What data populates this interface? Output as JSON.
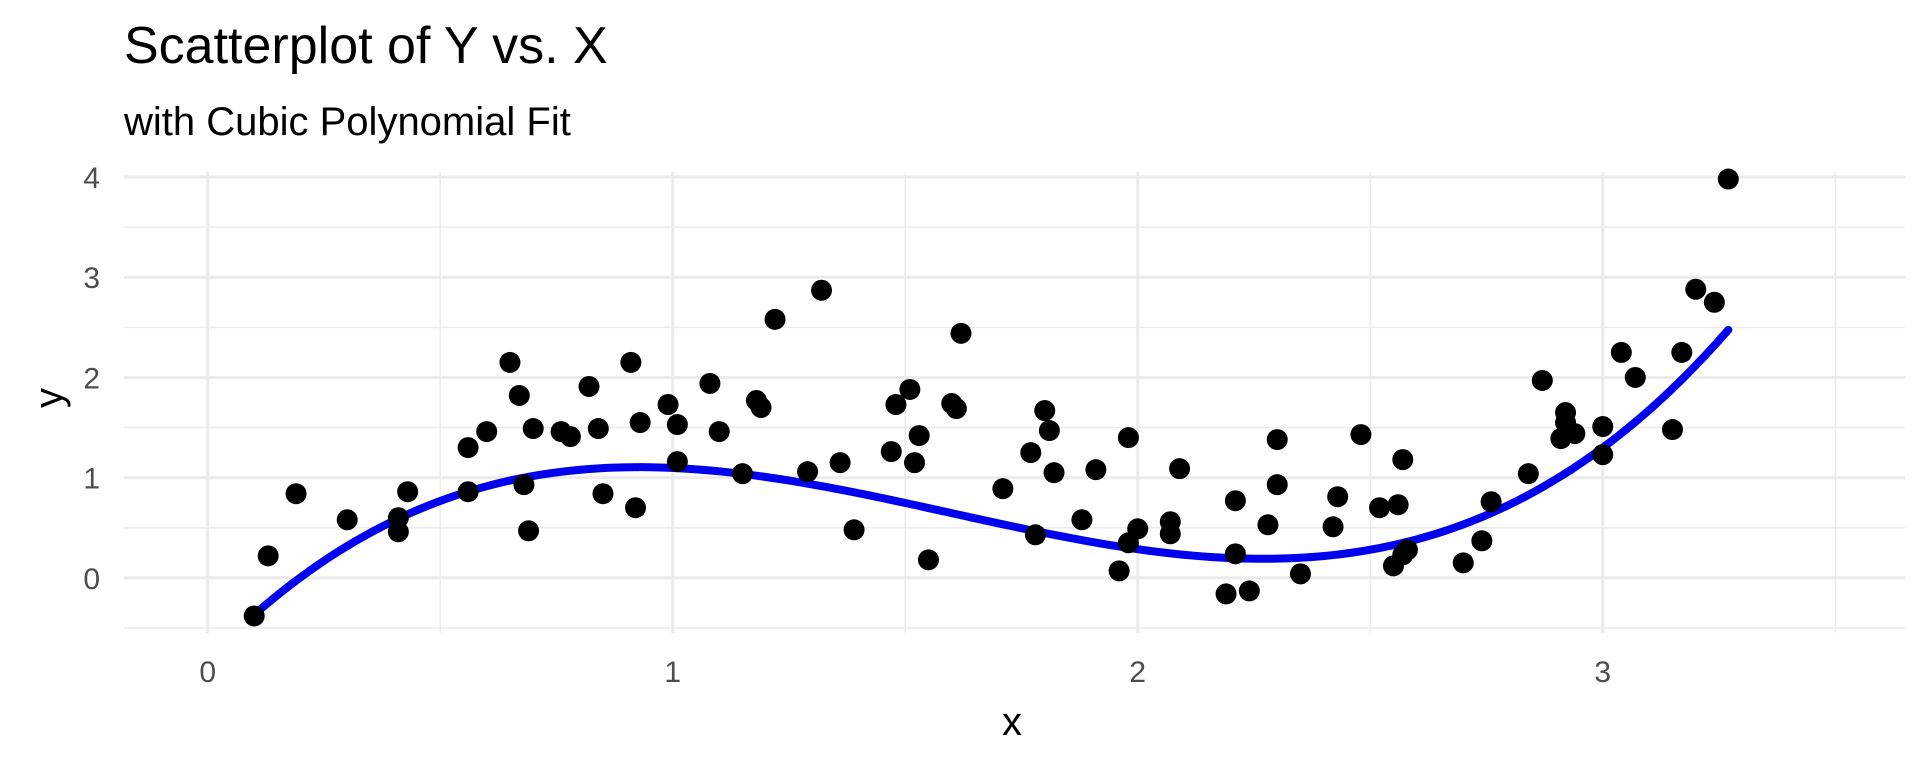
{
  "chart_data": {
    "type": "scatter",
    "title": "Scatterplot of Y vs. X",
    "subtitle": "with Cubic Polynomial Fit",
    "xlabel": "x",
    "ylabel": "y",
    "xlim": [
      -0.18,
      3.65
    ],
    "ylim": [
      -0.55,
      4.05
    ],
    "x_ticks": [
      0,
      1,
      2,
      3
    ],
    "y_ticks": [
      0,
      1,
      2,
      3,
      4
    ],
    "grid": true,
    "colors": {
      "points": "#000000",
      "fit": "#0000ee",
      "grid": "#ebebeb"
    },
    "points": [
      {
        "x": 0.1,
        "y": -0.38
      },
      {
        "x": 0.13,
        "y": 0.22
      },
      {
        "x": 0.19,
        "y": 0.84
      },
      {
        "x": 0.3,
        "y": 0.58
      },
      {
        "x": 0.41,
        "y": 0.46
      },
      {
        "x": 0.41,
        "y": 0.6
      },
      {
        "x": 0.43,
        "y": 0.86
      },
      {
        "x": 0.56,
        "y": 0.86
      },
      {
        "x": 0.56,
        "y": 1.3
      },
      {
        "x": 0.6,
        "y": 1.46
      },
      {
        "x": 0.65,
        "y": 2.15
      },
      {
        "x": 0.67,
        "y": 1.82
      },
      {
        "x": 0.68,
        "y": 0.93
      },
      {
        "x": 0.69,
        "y": 0.47
      },
      {
        "x": 0.7,
        "y": 1.49
      },
      {
        "x": 0.76,
        "y": 1.46
      },
      {
        "x": 0.78,
        "y": 1.41
      },
      {
        "x": 0.82,
        "y": 1.91
      },
      {
        "x": 0.84,
        "y": 1.49
      },
      {
        "x": 0.85,
        "y": 0.84
      },
      {
        "x": 0.91,
        "y": 2.15
      },
      {
        "x": 0.92,
        "y": 0.7
      },
      {
        "x": 0.93,
        "y": 1.55
      },
      {
        "x": 0.99,
        "y": 1.73
      },
      {
        "x": 1.01,
        "y": 1.16
      },
      {
        "x": 1.01,
        "y": 1.53
      },
      {
        "x": 1.08,
        "y": 1.94
      },
      {
        "x": 1.1,
        "y": 1.46
      },
      {
        "x": 1.15,
        "y": 1.04
      },
      {
        "x": 1.18,
        "y": 1.77
      },
      {
        "x": 1.19,
        "y": 1.7
      },
      {
        "x": 1.22,
        "y": 2.58
      },
      {
        "x": 1.29,
        "y": 1.06
      },
      {
        "x": 1.32,
        "y": 2.87
      },
      {
        "x": 1.36,
        "y": 1.15
      },
      {
        "x": 1.39,
        "y": 0.48
      },
      {
        "x": 1.47,
        "y": 1.26
      },
      {
        "x": 1.48,
        "y": 1.73
      },
      {
        "x": 1.51,
        "y": 1.88
      },
      {
        "x": 1.52,
        "y": 1.15
      },
      {
        "x": 1.53,
        "y": 1.42
      },
      {
        "x": 1.55,
        "y": 0.18
      },
      {
        "x": 1.6,
        "y": 1.74
      },
      {
        "x": 1.61,
        "y": 1.69
      },
      {
        "x": 1.62,
        "y": 2.44
      },
      {
        "x": 1.71,
        "y": 0.89
      },
      {
        "x": 1.77,
        "y": 1.25
      },
      {
        "x": 1.78,
        "y": 0.43
      },
      {
        "x": 1.8,
        "y": 1.67
      },
      {
        "x": 1.81,
        "y": 1.47
      },
      {
        "x": 1.82,
        "y": 1.05
      },
      {
        "x": 1.88,
        "y": 0.58
      },
      {
        "x": 1.91,
        "y": 1.08
      },
      {
        "x": 1.96,
        "y": 0.07
      },
      {
        "x": 1.98,
        "y": 0.35
      },
      {
        "x": 1.98,
        "y": 1.4
      },
      {
        "x": 2.0,
        "y": 0.49
      },
      {
        "x": 2.07,
        "y": 0.44
      },
      {
        "x": 2.07,
        "y": 0.56
      },
      {
        "x": 2.09,
        "y": 1.09
      },
      {
        "x": 2.19,
        "y": -0.16
      },
      {
        "x": 2.21,
        "y": 0.24
      },
      {
        "x": 2.21,
        "y": 0.77
      },
      {
        "x": 2.24,
        "y": -0.13
      },
      {
        "x": 2.28,
        "y": 0.53
      },
      {
        "x": 2.3,
        "y": 1.38
      },
      {
        "x": 2.3,
        "y": 0.93
      },
      {
        "x": 2.35,
        "y": 0.04
      },
      {
        "x": 2.42,
        "y": 0.51
      },
      {
        "x": 2.43,
        "y": 0.81
      },
      {
        "x": 2.48,
        "y": 1.43
      },
      {
        "x": 2.52,
        "y": 0.7
      },
      {
        "x": 2.55,
        "y": 0.12
      },
      {
        "x": 2.56,
        "y": 0.73
      },
      {
        "x": 2.57,
        "y": 1.18
      },
      {
        "x": 2.57,
        "y": 0.23
      },
      {
        "x": 2.58,
        "y": 0.28
      },
      {
        "x": 2.7,
        "y": 0.15
      },
      {
        "x": 2.74,
        "y": 0.37
      },
      {
        "x": 2.76,
        "y": 0.76
      },
      {
        "x": 2.84,
        "y": 1.04
      },
      {
        "x": 2.87,
        "y": 1.97
      },
      {
        "x": 2.91,
        "y": 1.39
      },
      {
        "x": 2.92,
        "y": 1.55
      },
      {
        "x": 2.92,
        "y": 1.65
      },
      {
        "x": 2.94,
        "y": 1.44
      },
      {
        "x": 3.0,
        "y": 1.23
      },
      {
        "x": 3.0,
        "y": 1.51
      },
      {
        "x": 3.04,
        "y": 2.25
      },
      {
        "x": 3.07,
        "y": 2.0
      },
      {
        "x": 3.15,
        "y": 1.48
      },
      {
        "x": 3.17,
        "y": 2.25
      },
      {
        "x": 3.2,
        "y": 2.88
      },
      {
        "x": 3.24,
        "y": 2.75
      },
      {
        "x": 3.27,
        "y": 3.98
      }
    ],
    "fit": {
      "type": "cubic",
      "x_range": [
        0.1,
        3.27
      ],
      "coefficients": {
        "a0": -0.81,
        "a1": 4.78,
        "a2": -3.63,
        "a3": 0.757
      }
    }
  }
}
